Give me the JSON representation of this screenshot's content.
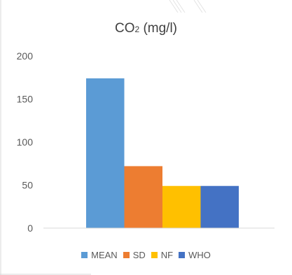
{
  "chart_data": {
    "type": "bar",
    "title_main": "CO",
    "title_sub": "2",
    "title_rest": " (mg/l)",
    "categories": [
      "MEAN",
      "SD",
      "NF",
      "WHO"
    ],
    "values": [
      174,
      72,
      49,
      49
    ],
    "colors": [
      "#5b9bd5",
      "#ed7d31",
      "#ffc000",
      "#4472c4"
    ],
    "ylim": [
      0,
      200
    ],
    "yticks": [
      "0",
      "50",
      "100",
      "150",
      "200"
    ],
    "grid": false,
    "legend_position": "bottom"
  }
}
